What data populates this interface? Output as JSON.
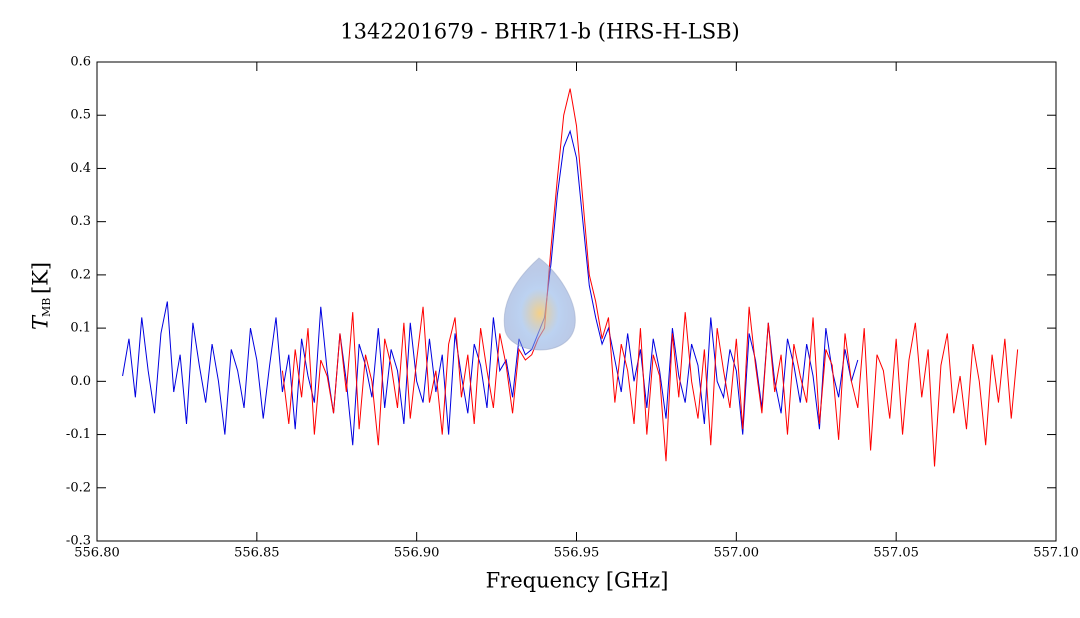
{
  "chart_data": {
    "type": "line",
    "title": "1342201679 - BHR71-b (HRS-H-LSB)",
    "xlabel": "Frequency [GHz]",
    "ylabel": {
      "main": "T",
      "sub": "MB",
      "unit": "[K]"
    },
    "xlim": [
      556.8,
      557.1
    ],
    "ylim": [
      -0.3,
      0.6
    ],
    "xticks": [
      {
        "value": 556.8,
        "label": "556.80"
      },
      {
        "value": 556.85,
        "label": "556.85"
      },
      {
        "value": 556.9,
        "label": "556.90"
      },
      {
        "value": 556.95,
        "label": "556.95"
      },
      {
        "value": 557.0,
        "label": "557.00"
      },
      {
        "value": 557.05,
        "label": "557.05"
      },
      {
        "value": 557.1,
        "label": "557.10"
      }
    ],
    "yticks": [
      -0.3,
      -0.2,
      -0.1,
      {
        "value": 0,
        "label": "0.0"
      },
      0.1,
      0.2,
      0.3,
      0.4,
      0.5,
      0.6
    ],
    "series": [
      {
        "color": "#0000e0",
        "x": [
          556.808,
          556.81,
          556.812,
          556.814,
          556.816,
          556.818,
          556.82,
          556.822,
          556.824,
          556.826,
          556.828,
          556.83,
          556.832,
          556.834,
          556.836,
          556.838,
          556.84,
          556.842,
          556.844,
          556.846,
          556.848,
          556.85,
          556.852,
          556.854,
          556.856,
          556.858,
          556.86,
          556.862,
          556.864,
          556.866,
          556.868,
          556.87,
          556.872,
          556.874,
          556.876,
          556.878,
          556.88,
          556.882,
          556.884,
          556.886,
          556.888,
          556.89,
          556.892,
          556.894,
          556.896,
          556.898,
          556.9,
          556.902,
          556.904,
          556.906,
          556.908,
          556.91,
          556.912,
          556.914,
          556.916,
          556.918,
          556.92,
          556.922,
          556.924,
          556.926,
          556.928,
          556.93,
          556.932,
          556.934,
          556.936,
          556.938,
          556.94,
          556.942,
          556.944,
          556.946,
          556.948,
          556.95,
          556.952,
          556.954,
          556.956,
          556.958,
          556.96,
          556.962,
          556.964,
          556.966,
          556.968,
          556.97,
          556.972,
          556.974,
          556.976,
          556.978,
          556.98,
          556.982,
          556.984,
          556.986,
          556.988,
          556.99,
          556.992,
          556.994,
          556.996,
          556.998,
          557.0,
          557.002,
          557.004,
          557.006,
          557.008,
          557.01,
          557.012,
          557.014,
          557.016,
          557.018,
          557.02,
          557.022,
          557.024,
          557.026,
          557.028,
          557.03,
          557.032,
          557.034,
          557.036,
          557.038
        ],
        "values": [
          0.01,
          0.08,
          -0.03,
          0.12,
          0.02,
          -0.06,
          0.09,
          0.15,
          -0.02,
          0.05,
          -0.08,
          0.11,
          0.03,
          -0.04,
          0.07,
          0.0,
          -0.1,
          0.06,
          0.02,
          -0.05,
          0.1,
          0.04,
          -0.07,
          0.03,
          0.12,
          -0.02,
          0.05,
          -0.09,
          0.08,
          0.01,
          -0.04,
          0.14,
          0.02,
          -0.06,
          0.09,
          0.0,
          -0.12,
          0.07,
          0.03,
          -0.03,
          0.1,
          -0.05,
          0.06,
          0.02,
          -0.08,
          0.11,
          0.0,
          -0.04,
          0.08,
          -0.02,
          0.05,
          -0.1,
          0.09,
          0.01,
          -0.06,
          0.07,
          0.03,
          -0.05,
          0.12,
          0.02,
          0.04,
          -0.03,
          0.08,
          0.05,
          0.06,
          0.09,
          0.12,
          0.22,
          0.35,
          0.44,
          0.47,
          0.42,
          0.3,
          0.18,
          0.12,
          0.07,
          0.1,
          0.04,
          -0.02,
          0.09,
          0.0,
          0.06,
          -0.05,
          0.08,
          0.02,
          -0.07,
          0.1,
          0.01,
          -0.04,
          0.07,
          0.03,
          -0.08,
          0.12,
          0.0,
          -0.03,
          0.06,
          0.02,
          -0.1,
          0.09,
          0.04,
          -0.05,
          0.11,
          0.0,
          -0.06,
          0.08,
          0.03,
          -0.04,
          0.07,
          0.01,
          -0.09,
          0.1,
          0.02,
          -0.03,
          0.06,
          0.0,
          0.04
        ]
      },
      {
        "color": "#ff0000",
        "x": [
          556.858,
          556.86,
          556.862,
          556.864,
          556.866,
          556.868,
          556.87,
          556.872,
          556.874,
          556.876,
          556.878,
          556.88,
          556.882,
          556.884,
          556.886,
          556.888,
          556.89,
          556.892,
          556.894,
          556.896,
          556.898,
          556.9,
          556.902,
          556.904,
          556.906,
          556.908,
          556.91,
          556.912,
          556.914,
          556.916,
          556.918,
          556.92,
          556.922,
          556.924,
          556.926,
          556.928,
          556.93,
          556.932,
          556.934,
          556.936,
          556.938,
          556.94,
          556.942,
          556.944,
          556.946,
          556.948,
          556.95,
          556.952,
          556.954,
          556.956,
          556.958,
          556.96,
          556.962,
          556.964,
          556.966,
          556.968,
          556.97,
          556.972,
          556.974,
          556.976,
          556.978,
          556.98,
          556.982,
          556.984,
          556.986,
          556.988,
          556.99,
          556.992,
          556.994,
          556.996,
          556.998,
          557.0,
          557.002,
          557.004,
          557.006,
          557.008,
          557.01,
          557.012,
          557.014,
          557.016,
          557.018,
          557.02,
          557.022,
          557.024,
          557.026,
          557.028,
          557.03,
          557.032,
          557.034,
          557.036,
          557.038,
          557.04,
          557.042,
          557.044,
          557.046,
          557.048,
          557.05,
          557.052,
          557.054,
          557.056,
          557.058,
          557.06,
          557.062,
          557.064,
          557.066,
          557.068,
          557.07,
          557.072,
          557.074,
          557.076,
          557.078,
          557.08,
          557.082,
          557.084,
          557.086,
          557.088
        ],
        "values": [
          0.02,
          -0.08,
          0.06,
          -0.03,
          0.1,
          -0.1,
          0.04,
          0.01,
          -0.06,
          0.09,
          -0.02,
          0.13,
          -0.09,
          0.05,
          0.0,
          -0.12,
          0.08,
          0.03,
          -0.05,
          0.11,
          -0.07,
          0.04,
          0.14,
          -0.04,
          0.02,
          -0.1,
          0.07,
          0.12,
          -0.03,
          0.05,
          -0.08,
          0.1,
          0.02,
          -0.05,
          0.09,
          0.03,
          -0.06,
          0.06,
          0.04,
          0.05,
          0.08,
          0.1,
          0.25,
          0.38,
          0.5,
          0.55,
          0.48,
          0.34,
          0.2,
          0.15,
          0.08,
          0.12,
          -0.04,
          0.07,
          0.02,
          -0.08,
          0.1,
          -0.1,
          0.05,
          0.01,
          -0.15,
          0.09,
          -0.03,
          0.13,
          0.0,
          -0.07,
          0.06,
          -0.12,
          0.1,
          0.02,
          -0.05,
          0.08,
          -0.09,
          0.14,
          0.03,
          -0.06,
          0.11,
          -0.02,
          0.05,
          -0.1,
          0.07,
          0.01,
          -0.04,
          0.12,
          -0.08,
          0.06,
          0.03,
          -0.11,
          0.09,
          0.0,
          -0.05,
          0.1,
          -0.13,
          0.05,
          0.02,
          -0.07,
          0.08,
          -0.1,
          0.04,
          0.11,
          -0.03,
          0.06,
          -0.16,
          0.03,
          0.09,
          -0.06,
          0.01,
          -0.09,
          0.07,
          0.0,
          -0.12,
          0.05,
          -0.04,
          0.08,
          -0.07,
          0.06
        ]
      }
    ]
  }
}
